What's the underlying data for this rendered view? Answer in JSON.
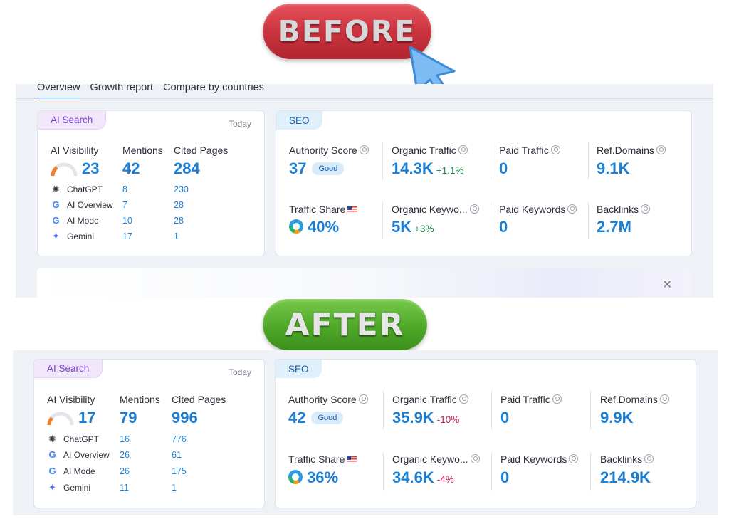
{
  "badges": {
    "before": "BEFORE",
    "after": "AFTER"
  },
  "tabs": [
    "Overview",
    "Growth report",
    "Compare by countries"
  ],
  "ai_search": {
    "tag": "AI Search",
    "today": "Today",
    "headers": {
      "visibility": "AI Visibility",
      "mentions": "Mentions",
      "cited": "Cited Pages"
    },
    "platforms": [
      "ChatGPT",
      "AI Overview",
      "AI Mode",
      "Gemini"
    ]
  },
  "seo": {
    "tag": "SEO",
    "labels": {
      "authority": "Authority Score",
      "organic_traffic": "Organic Traffic",
      "paid_traffic": "Paid Traffic",
      "ref_domains": "Ref.Domains",
      "traffic_share": "Traffic Share",
      "organic_keywords": "Organic Keywo...",
      "paid_keywords": "Paid Keywords",
      "backlinks": "Backlinks"
    },
    "good_label": "Good"
  },
  "before": {
    "ai": {
      "visibility": "23",
      "mentions": "42",
      "cited": "284",
      "rows": [
        {
          "mentions": "8",
          "cited": "230"
        },
        {
          "mentions": "7",
          "cited": "28"
        },
        {
          "mentions": "10",
          "cited": "28"
        },
        {
          "mentions": "17",
          "cited": "1"
        }
      ]
    },
    "seo": {
      "authority": "37",
      "organic_traffic": "14.3K",
      "organic_traffic_delta": "+1.1%",
      "paid_traffic": "0",
      "ref_domains": "9.1K",
      "traffic_share": "40%",
      "organic_keywords": "5K",
      "organic_keywords_delta": "+3%",
      "paid_keywords": "0",
      "backlinks": "2.7M"
    }
  },
  "after": {
    "ai": {
      "visibility": "17",
      "mentions": "79",
      "cited": "996",
      "rows": [
        {
          "mentions": "16",
          "cited": "776"
        },
        {
          "mentions": "26",
          "cited": "61"
        },
        {
          "mentions": "26",
          "cited": "175"
        },
        {
          "mentions": "11",
          "cited": "1"
        }
      ]
    },
    "seo": {
      "authority": "42",
      "organic_traffic": "35.9K",
      "organic_traffic_delta": "-10%",
      "paid_traffic": "0",
      "ref_domains": "9.9K",
      "traffic_share": "36%",
      "organic_keywords": "34.6K",
      "organic_keywords_delta": "-4%",
      "paid_keywords": "0",
      "backlinks": "214.9K"
    }
  },
  "colors": {
    "accent_blue": "#1a7fd4",
    "before_badge": "#d23a45",
    "after_badge": "#56ad2e",
    "delta_up": "#1f8a4c",
    "delta_down": "#c2185b"
  }
}
